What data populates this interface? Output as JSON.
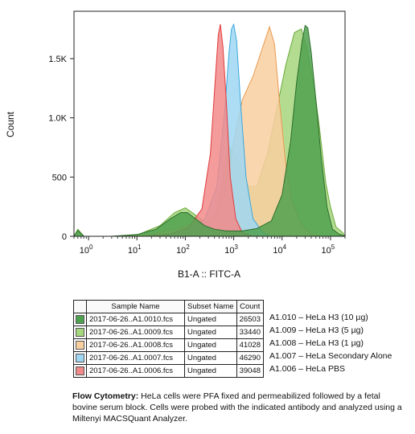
{
  "chart_data": {
    "type": "area",
    "xlabel": "B1-A :: FITC-A",
    "ylabel": "Count",
    "x_scale": "log",
    "xlim": [
      0.5,
      200000
    ],
    "ylim": [
      0,
      1900
    ],
    "x_ticks": [
      {
        "value": 1,
        "base": "10",
        "exp": "0"
      },
      {
        "value": 10,
        "base": "10",
        "exp": "1"
      },
      {
        "value": 100,
        "base": "10",
        "exp": "2"
      },
      {
        "value": 1000,
        "base": "10",
        "exp": "3"
      },
      {
        "value": 10000,
        "base": "10",
        "exp": "4"
      },
      {
        "value": 100000,
        "base": "10",
        "exp": "5"
      }
    ],
    "y_ticks": [
      {
        "value": 0,
        "label": "0"
      },
      {
        "value": 500,
        "label": "500"
      },
      {
        "value": 1000,
        "label": "1.0K"
      },
      {
        "value": 1500,
        "label": "1.5K"
      }
    ],
    "series": [
      {
        "name": "A1.009 – HeLa H3 (5 µg)",
        "fill": "#a6d67e",
        "stroke": "#6aaa3a",
        "points": [
          [
            0.5,
            0
          ],
          [
            0.6,
            60
          ],
          [
            0.8,
            0
          ],
          [
            3,
            0
          ],
          [
            10,
            10
          ],
          [
            30,
            90
          ],
          [
            60,
            200
          ],
          [
            100,
            240
          ],
          [
            150,
            190
          ],
          [
            250,
            120
          ],
          [
            400,
            150
          ],
          [
            600,
            500
          ],
          [
            800,
            760
          ],
          [
            1000,
            700
          ],
          [
            1500,
            560
          ],
          [
            2000,
            420
          ],
          [
            3000,
            420
          ],
          [
            5000,
            700
          ],
          [
            8000,
            1100
          ],
          [
            12000,
            1450
          ],
          [
            18000,
            1720
          ],
          [
            25000,
            1750
          ],
          [
            32000,
            1600
          ],
          [
            45000,
            1300
          ],
          [
            60000,
            900
          ],
          [
            80000,
            450
          ],
          [
            100000,
            250
          ],
          [
            130000,
            80
          ],
          [
            180000,
            30
          ],
          [
            200000,
            0
          ]
        ]
      },
      {
        "name": "A1.008 – HeLa H3 (1 µg)",
        "fill": "#f9cfa0",
        "stroke": "#e79a52",
        "points": [
          [
            0.5,
            0
          ],
          [
            5,
            0
          ],
          [
            20,
            15
          ],
          [
            60,
            60
          ],
          [
            120,
            100
          ],
          [
            200,
            80
          ],
          [
            400,
            140
          ],
          [
            700,
            380
          ],
          [
            1000,
            800
          ],
          [
            1500,
            1150
          ],
          [
            2500,
            1350
          ],
          [
            4000,
            1600
          ],
          [
            5500,
            1770
          ],
          [
            7000,
            1620
          ],
          [
            9000,
            1100
          ],
          [
            12000,
            600
          ],
          [
            16000,
            300
          ],
          [
            25000,
            100
          ],
          [
            40000,
            20
          ],
          [
            60000,
            0
          ],
          [
            200000,
            0
          ]
        ]
      },
      {
        "name": "A1.007 – HeLa Secondary Alone",
        "fill": "#9fd7f2",
        "stroke": "#3aa8de",
        "points": [
          [
            0.5,
            0
          ],
          [
            20,
            0
          ],
          [
            60,
            20
          ],
          [
            120,
            60
          ],
          [
            250,
            140
          ],
          [
            450,
            420
          ],
          [
            650,
            1050
          ],
          [
            800,
            1550
          ],
          [
            900,
            1750
          ],
          [
            1000,
            1790
          ],
          [
            1150,
            1650
          ],
          [
            1400,
            1100
          ],
          [
            1800,
            500
          ],
          [
            2500,
            150
          ],
          [
            4000,
            30
          ],
          [
            6000,
            0
          ],
          [
            200000,
            0
          ]
        ]
      },
      {
        "name": "A1.006 – HeLa PBS",
        "fill": "#f28a8a",
        "stroke": "#e03b3b",
        "points": [
          [
            0.5,
            0
          ],
          [
            15,
            0
          ],
          [
            50,
            20
          ],
          [
            120,
            80
          ],
          [
            220,
            230
          ],
          [
            330,
            700
          ],
          [
            420,
            1350
          ],
          [
            480,
            1700
          ],
          [
            530,
            1790
          ],
          [
            600,
            1600
          ],
          [
            700,
            1150
          ],
          [
            850,
            500
          ],
          [
            1100,
            150
          ],
          [
            1500,
            30
          ],
          [
            2500,
            0
          ],
          [
            200000,
            0
          ]
        ]
      },
      {
        "name": "A1.010 – HeLa H3 (10 µg)",
        "fill": "#4fa14f",
        "stroke": "#2c6e2c",
        "points": [
          [
            0.5,
            0
          ],
          [
            0.6,
            50
          ],
          [
            0.8,
            0
          ],
          [
            3,
            0
          ],
          [
            10,
            15
          ],
          [
            25,
            60
          ],
          [
            50,
            150
          ],
          [
            80,
            200
          ],
          [
            110,
            200
          ],
          [
            160,
            150
          ],
          [
            250,
            90
          ],
          [
            400,
            60
          ],
          [
            700,
            45
          ],
          [
            1500,
            45
          ],
          [
            3000,
            65
          ],
          [
            6000,
            130
          ],
          [
            10000,
            350
          ],
          [
            15000,
            800
          ],
          [
            20000,
            1300
          ],
          [
            26000,
            1650
          ],
          [
            30000,
            1780
          ],
          [
            34000,
            1760
          ],
          [
            40000,
            1550
          ],
          [
            50000,
            1150
          ],
          [
            65000,
            650
          ],
          [
            85000,
            250
          ],
          [
            110000,
            60
          ],
          [
            150000,
            20
          ],
          [
            200000,
            0
          ]
        ]
      }
    ]
  },
  "legend": {
    "headers": {
      "swatch": "",
      "sample": "Sample Name",
      "subset": "Subset Name",
      "count": "Count"
    },
    "rows": [
      {
        "color": "#4fa14f",
        "sample": "2017-06-26..A1.0010.fcs",
        "subset": "Ungated",
        "count": "26503",
        "label": "A1.010 – HeLa H3 (10 µg)"
      },
      {
        "color": "#a6d67e",
        "sample": "2017-06-26..A1.0009.fcs",
        "subset": "Ungated",
        "count": "33440",
        "label": "A1.009 – HeLa H3 (5 µg)"
      },
      {
        "color": "#f9cfa0",
        "sample": "2017-06-26..A1.0008.fcs",
        "subset": "Ungated",
        "count": "41028",
        "label": "A1.008 – HeLa H3 (1 µg)"
      },
      {
        "color": "#9fd7f2",
        "sample": "2017-06-26..A1.0007.fcs",
        "subset": "Ungated",
        "count": "46290",
        "label": "A1.007 – HeLa Secondary Alone"
      },
      {
        "color": "#f28a8a",
        "sample": "2017-06-26..A1.0006.fcs",
        "subset": "Ungated",
        "count": "39048",
        "label": "A1.006 – HeLa PBS"
      }
    ]
  },
  "caption": {
    "bold": "Flow Cytometry:",
    "text": " HeLa cells were PFA fixed and permeabilized followed by a fetal bovine serum block. Cells were probed with the indicated antibody and analyzed using a Miltenyi MACSQuant Analyzer."
  }
}
